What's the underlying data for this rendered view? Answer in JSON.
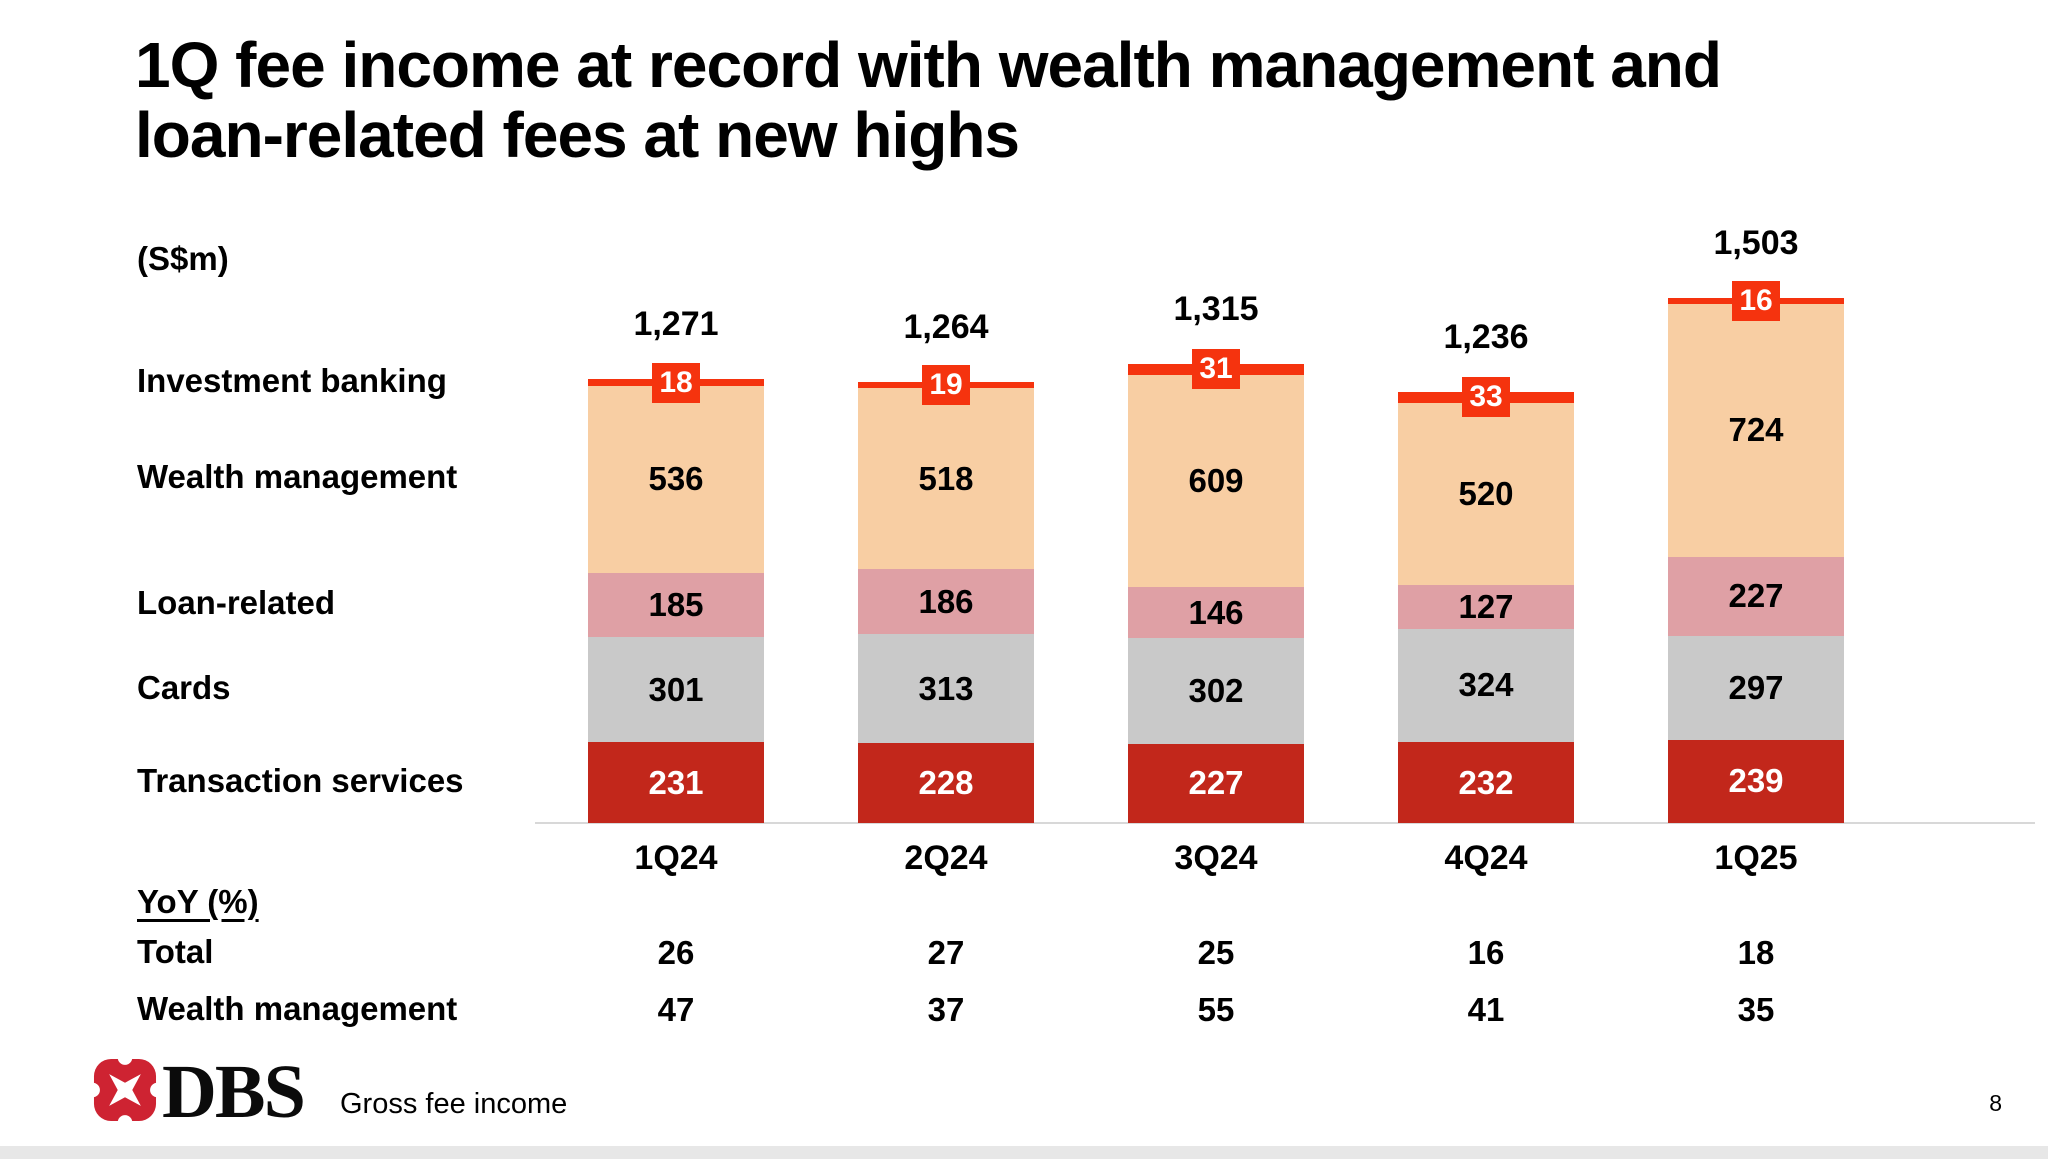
{
  "slide": {
    "title_lines": [
      "1Q fee income at record with wealth management and",
      "loan-related fees at new highs"
    ],
    "unit_label": "(S$m)"
  },
  "chart_data": {
    "type": "bar",
    "subtype": "stacked",
    "title": "Gross fee income by quarter",
    "unit": "S$m",
    "categories": [
      "1Q24",
      "2Q24",
      "3Q24",
      "4Q24",
      "1Q25"
    ],
    "totals": [
      1271,
      1264,
      1315,
      1236,
      1503
    ],
    "total_labels": [
      "1,271",
      "1,264",
      "1,315",
      "1,236",
      "1,503"
    ],
    "series": [
      {
        "name": "Transaction services",
        "values": [
          231,
          228,
          227,
          232,
          239
        ],
        "color": "#C2271B",
        "text_color": "#FFFFFF",
        "style": "block"
      },
      {
        "name": "Cards",
        "values": [
          301,
          313,
          302,
          324,
          297
        ],
        "color": "#C9C9C9",
        "text_color": "#000000",
        "style": "block"
      },
      {
        "name": "Loan-related",
        "values": [
          185,
          186,
          146,
          127,
          227
        ],
        "color": "#DFA0A5",
        "text_color": "#000000",
        "style": "block"
      },
      {
        "name": "Wealth management",
        "values": [
          536,
          518,
          609,
          520,
          724
        ],
        "color": "#F8CEA3",
        "text_color": "#000000",
        "style": "block"
      },
      {
        "name": "Investment banking",
        "values": [
          18,
          19,
          31,
          33,
          16
        ],
        "color": "#F5330E",
        "text_color": "#FFFFFF",
        "style": "marker"
      }
    ],
    "legend_position": "left-labels",
    "ylim": [
      0,
      1600
    ],
    "grid": false,
    "axis_color": "#D8D8D8"
  },
  "yoy": {
    "heading": "YoY (%)",
    "rows": [
      {
        "label": "Total",
        "values": [
          "26",
          "27",
          "25",
          "16",
          "18"
        ]
      },
      {
        "label": "Wealth management",
        "values": [
          "47",
          "37",
          "55",
          "41",
          "35"
        ]
      }
    ]
  },
  "footer": {
    "logo_text": "DBS",
    "logo_icon": "dbs-lotus-icon",
    "logo_color": "#CE2332",
    "caption": "Gross fee income",
    "page_number": "8",
    "strip_color": "#E7E7E7"
  }
}
